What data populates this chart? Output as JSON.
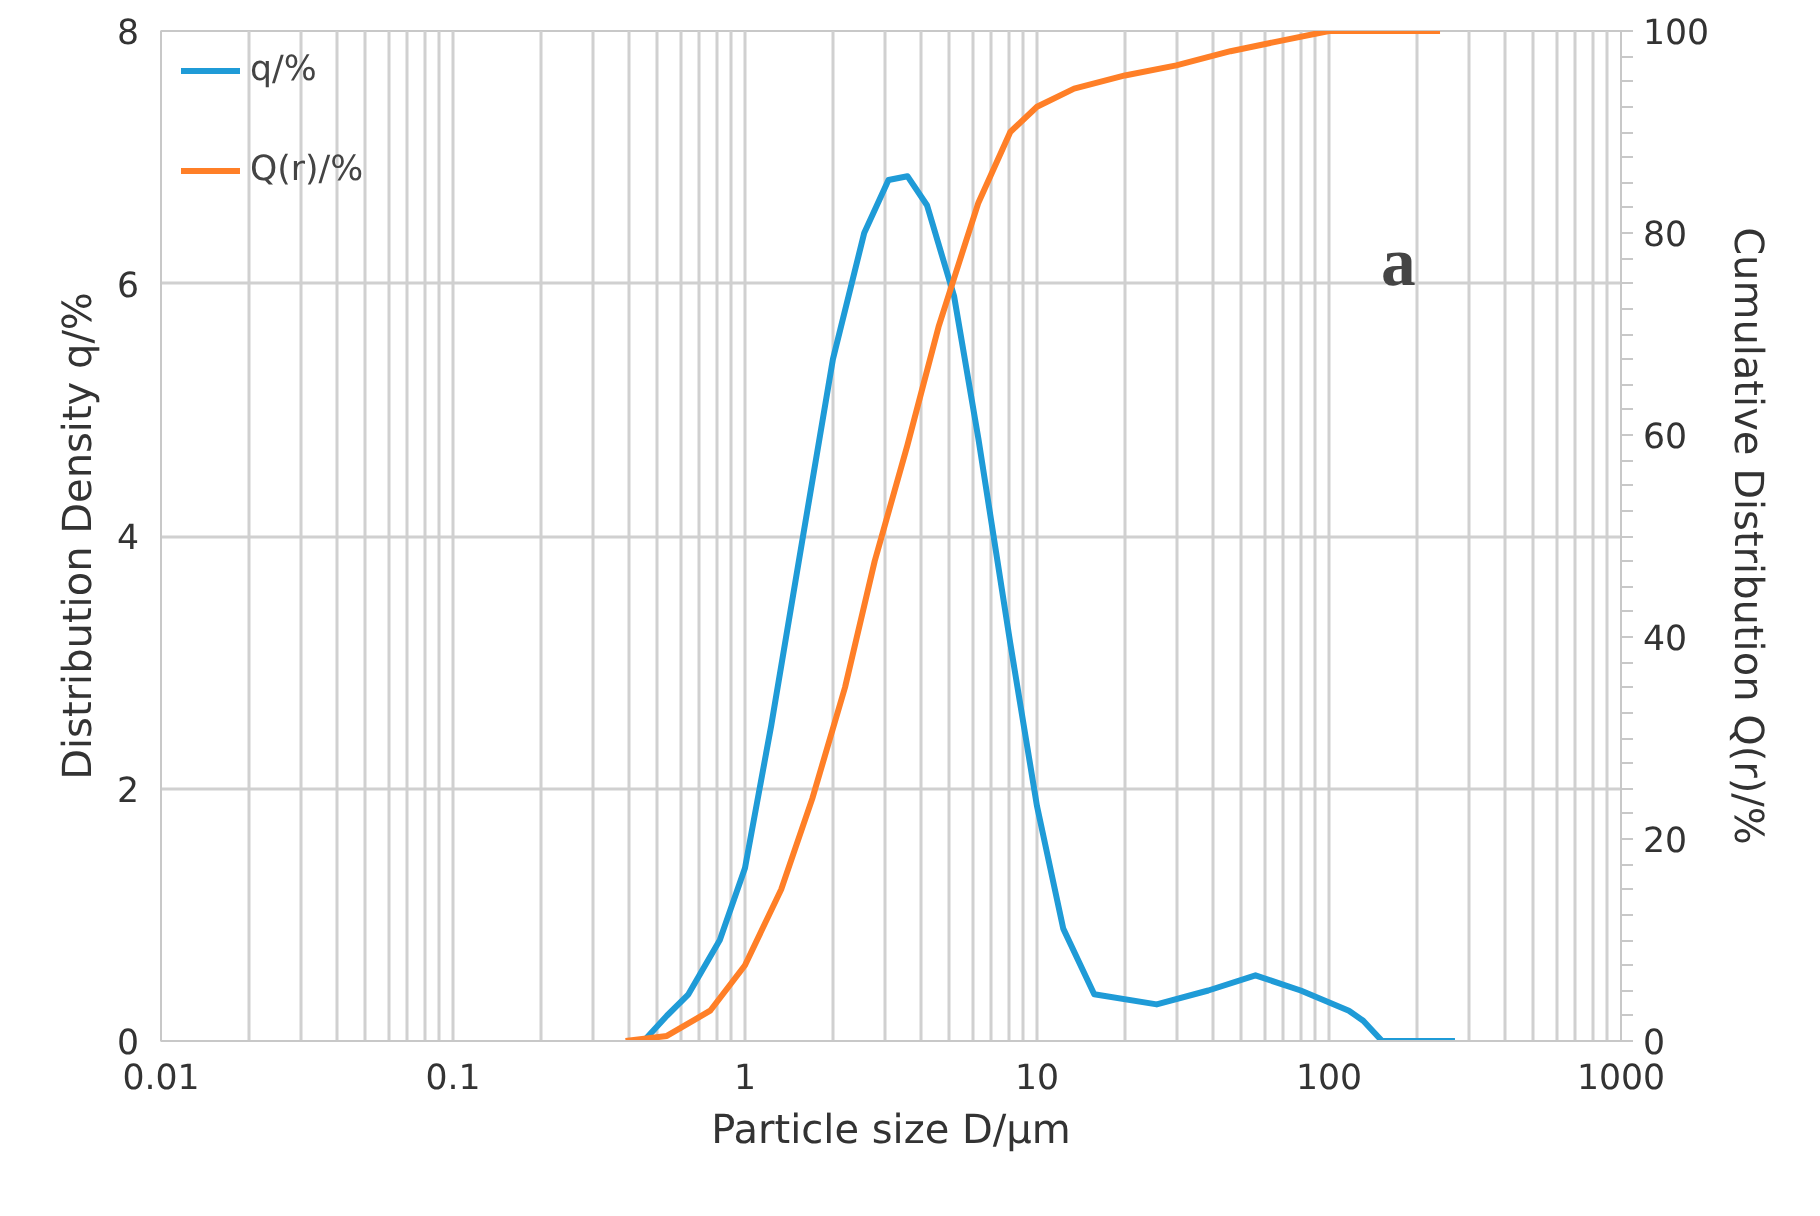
{
  "chart_data": {
    "type": "line",
    "xlabel": "Particle size D/µm",
    "ylabel": "Distribution Density q/%",
    "y2label": "Cumulative Distribution Q(r)/%",
    "log": "x",
    "grid": true,
    "legend": "top left",
    "marker": "none",
    "line_style": "solid",
    "annotations": [
      "a"
    ],
    "xlim": [
      0.01,
      1000
    ],
    "xticks": [
      0.01,
      {
        "value": 0.02,
        "label": null
      },
      {
        "value": 0.03,
        "label": null
      },
      {
        "value": 0.04,
        "label": null
      },
      {
        "value": 0.05,
        "label": null
      },
      {
        "value": 0.06,
        "label": null
      },
      {
        "value": 0.07,
        "label": null
      },
      {
        "value": 0.08,
        "label": null
      },
      {
        "value": 0.09,
        "label": null
      },
      0.1,
      {
        "value": 0.2,
        "label": null
      },
      {
        "value": 0.3,
        "label": null
      },
      {
        "value": 0.4,
        "label": null
      },
      {
        "value": 0.5,
        "label": null
      },
      {
        "value": 0.6,
        "label": null
      },
      {
        "value": 0.7,
        "label": null
      },
      {
        "value": 0.8,
        "label": null
      },
      {
        "value": 0.9,
        "label": null
      },
      1,
      {
        "value": 2,
        "label": null
      },
      {
        "value": 3,
        "label": null
      },
      {
        "value": 4,
        "label": null
      },
      {
        "value": 5,
        "label": null
      },
      {
        "value": 6,
        "label": null
      },
      {
        "value": 7,
        "label": null
      },
      {
        "value": 8,
        "label": null
      },
      {
        "value": 9,
        "label": null
      },
      10,
      {
        "value": 20,
        "label": null
      },
      {
        "value": 30,
        "label": null
      },
      {
        "value": 40,
        "label": null
      },
      {
        "value": 50,
        "label": null
      },
      {
        "value": 60,
        "label": null
      },
      {
        "value": 70,
        "label": null
      },
      {
        "value": 80,
        "label": null
      },
      {
        "value": 90,
        "label": null
      },
      100,
      {
        "value": 200,
        "label": null
      },
      {
        "value": 300,
        "label": null
      },
      {
        "value": 400,
        "label": null
      },
      {
        "value": 500,
        "label": null
      },
      {
        "value": 600,
        "label": null
      },
      {
        "value": 700,
        "label": null
      },
      {
        "value": 800,
        "label": null
      },
      {
        "value": 900,
        "label": null
      },
      1000
    ],
    "ylim": [
      0,
      8
    ],
    "yticks": [
      0,
      2,
      4,
      6,
      8
    ],
    "y2lim": [
      0,
      100
    ],
    "y2ticks": [
      0,
      20,
      40,
      60,
      80,
      100
    ],
    "series": [
      {
        "name": "q/%",
        "color": "#1f9bd7",
        "x": [
          0.45,
          0.54,
          0.64,
          0.82,
          1.0,
          1.23,
          1.57,
          2.0,
          2.56,
          3.1,
          3.6,
          4.2,
          5.2,
          6.3,
          8.1,
          10,
          12.3,
          15.7,
          25.7,
          38.6,
          56,
          80,
          117,
          131,
          152,
          270
        ],
        "values": [
          0,
          0.2,
          0.37,
          0.8,
          1.37,
          2.5,
          3.96,
          5.4,
          6.4,
          6.82,
          6.85,
          6.62,
          5.9,
          4.77,
          3.15,
          1.86,
          0.89,
          0.37,
          0.29,
          0.4,
          0.52,
          0.4,
          0.24,
          0.16,
          0,
          0
        ]
      },
      {
        "name": "Q(r)/%",
        "color": "#ff7f27",
        "axis": "y2",
        "x": [
          0.39,
          0.54,
          0.76,
          1.0,
          1.33,
          1.7,
          2.2,
          2.78,
          3.6,
          4.6,
          5.4,
          6.3,
          8.1,
          10,
          13.4,
          20,
          30,
          46,
          73,
          100,
          240
        ],
        "values": [
          0,
          0.5,
          3,
          7.5,
          15,
          24,
          35,
          47.5,
          59,
          70.7,
          77,
          83,
          90,
          92.5,
          94.3,
          95.6,
          96.6,
          98,
          99.2,
          100,
          100
        ]
      }
    ]
  }
}
